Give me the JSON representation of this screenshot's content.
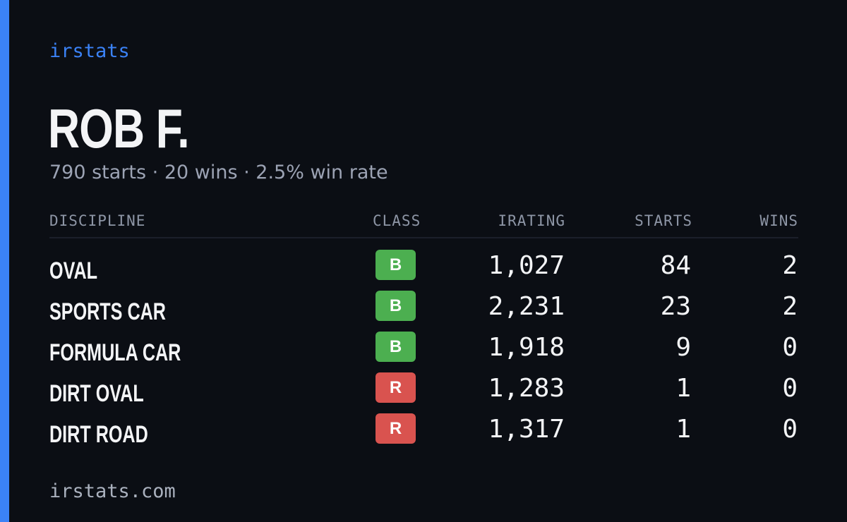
{
  "brand": "irstats",
  "driver": {
    "name": "ROB F.",
    "summary": "790 starts · 20 wins · 2.5% win rate"
  },
  "table": {
    "headers": {
      "discipline": "DISCIPLINE",
      "class": "CLASS",
      "irating": "IRATING",
      "starts": "STARTS",
      "wins": "WINS"
    },
    "rows": [
      {
        "discipline": "OVAL",
        "class": "B",
        "irating": "1,027",
        "starts": "84",
        "wins": "2"
      },
      {
        "discipline": "SPORTS CAR",
        "class": "B",
        "irating": "2,231",
        "starts": "23",
        "wins": "2"
      },
      {
        "discipline": "FORMULA CAR",
        "class": "B",
        "irating": "1,918",
        "starts": "9",
        "wins": "0"
      },
      {
        "discipline": "DIRT OVAL",
        "class": "R",
        "irating": "1,283",
        "starts": "1",
        "wins": "0"
      },
      {
        "discipline": "DIRT ROAD",
        "class": "R",
        "irating": "1,317",
        "starts": "1",
        "wins": "0"
      }
    ]
  },
  "footer": "irstats.com",
  "colors": {
    "background": "#0b0e14",
    "accent": "#3b82f6",
    "class_B": "#4caf50",
    "class_R": "#d9534f"
  }
}
